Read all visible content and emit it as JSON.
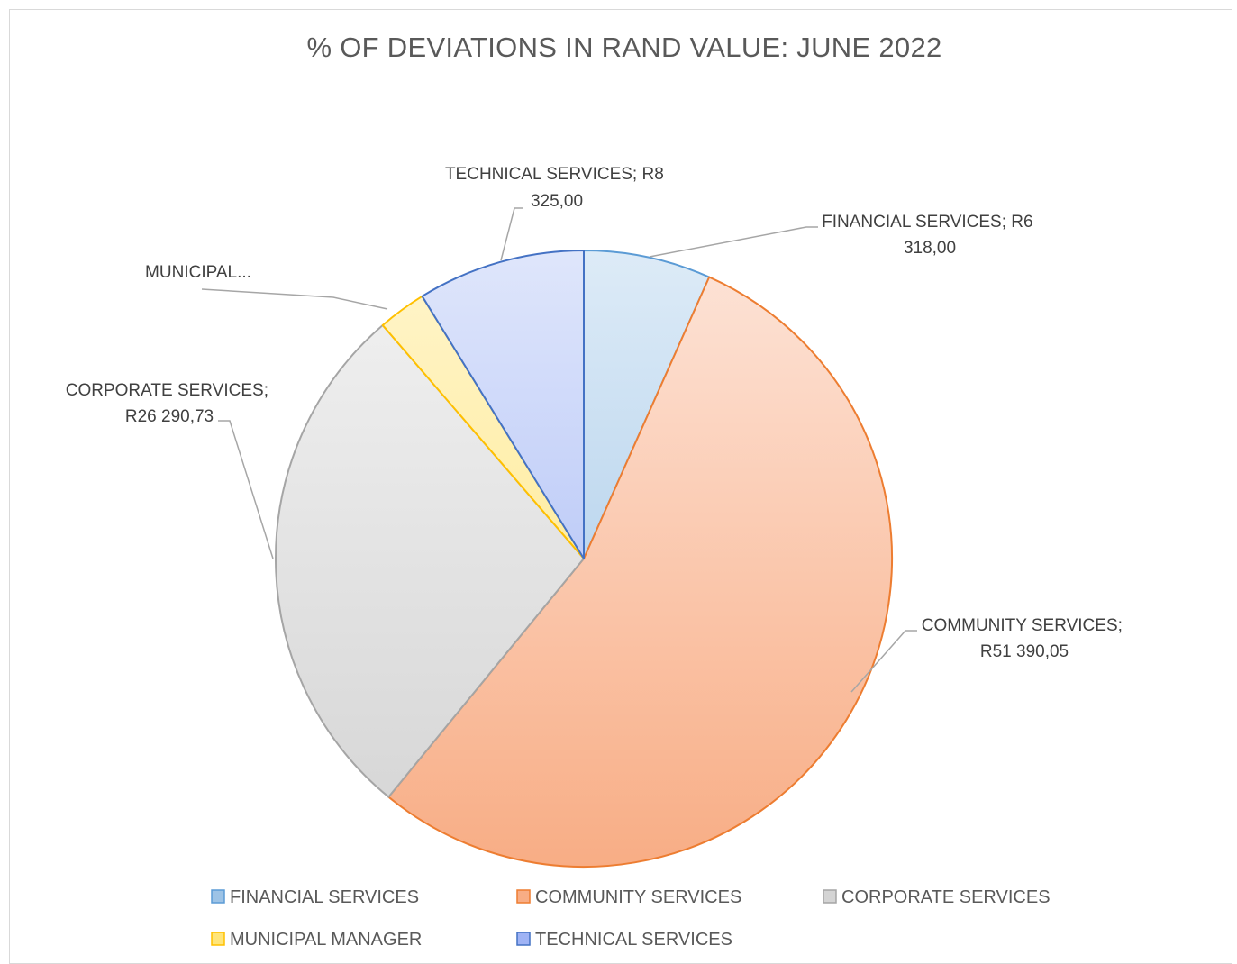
{
  "chart_data": {
    "type": "pie",
    "title": "% OF DEVIATIONS IN RAND VALUE: JUNE 2022",
    "series": [
      {
        "name": "",
        "categories": [
          "FINANCIAL SERVICES",
          "COMMUNITY SERVICES",
          "CORPORATE SERVICES",
          "MUNICIPAL MANAGER",
          "TECHNICAL SERVICES"
        ],
        "values": [
          6318.0,
          51390.05,
          26290.73,
          2400.0,
          8325.0
        ]
      }
    ],
    "slices": [
      {
        "name": "FINANCIAL SERVICES",
        "value": 6318.0,
        "label_lines": [
          "FINANCIAL SERVICES;  R6",
          "318,00"
        ],
        "color_light": "#ddebf7",
        "color_dark": "#9dc3e6",
        "edge": "#5b9bd5"
      },
      {
        "name": "COMMUNITY SERVICES",
        "value": 51390.05,
        "label_lines": [
          "COMMUNITY SERVICES;",
          "R51 390,05"
        ],
        "color_light": "#fde4d8",
        "color_dark": "#f8ad85",
        "edge": "#ed7d31"
      },
      {
        "name": "CORPORATE SERVICES",
        "value": 26290.73,
        "label_lines": [
          "CORPORATE SERVICES;",
          "R26 290,73"
        ],
        "color_light": "#f2f2f2",
        "color_dark": "#d4d4d4",
        "edge": "#a5a5a5"
      },
      {
        "name": "MUNICIPAL MANAGER",
        "value": 2400.0,
        "label_lines": [
          "MUNICIPAL..."
        ],
        "color_light": "#fff5cc",
        "color_dark": "#ffe57a",
        "edge": "#ffc000"
      },
      {
        "name": "TECHNICAL SERVICES",
        "value": 8325.0,
        "label_lines": [
          "TECHNICAL SERVICES;  R8",
          "325,00"
        ],
        "color_light": "#dfe6fb",
        "color_dark": "#9fb3f5",
        "edge": "#4472c4"
      }
    ],
    "start_angle_deg": 0,
    "direction": "clockwise",
    "legend": {
      "position": "bottom",
      "items": [
        "FINANCIAL SERVICES",
        "COMMUNITY SERVICES",
        "CORPORATE SERVICES",
        "MUNICIPAL MANAGER",
        "TECHNICAL SERVICES"
      ]
    }
  }
}
